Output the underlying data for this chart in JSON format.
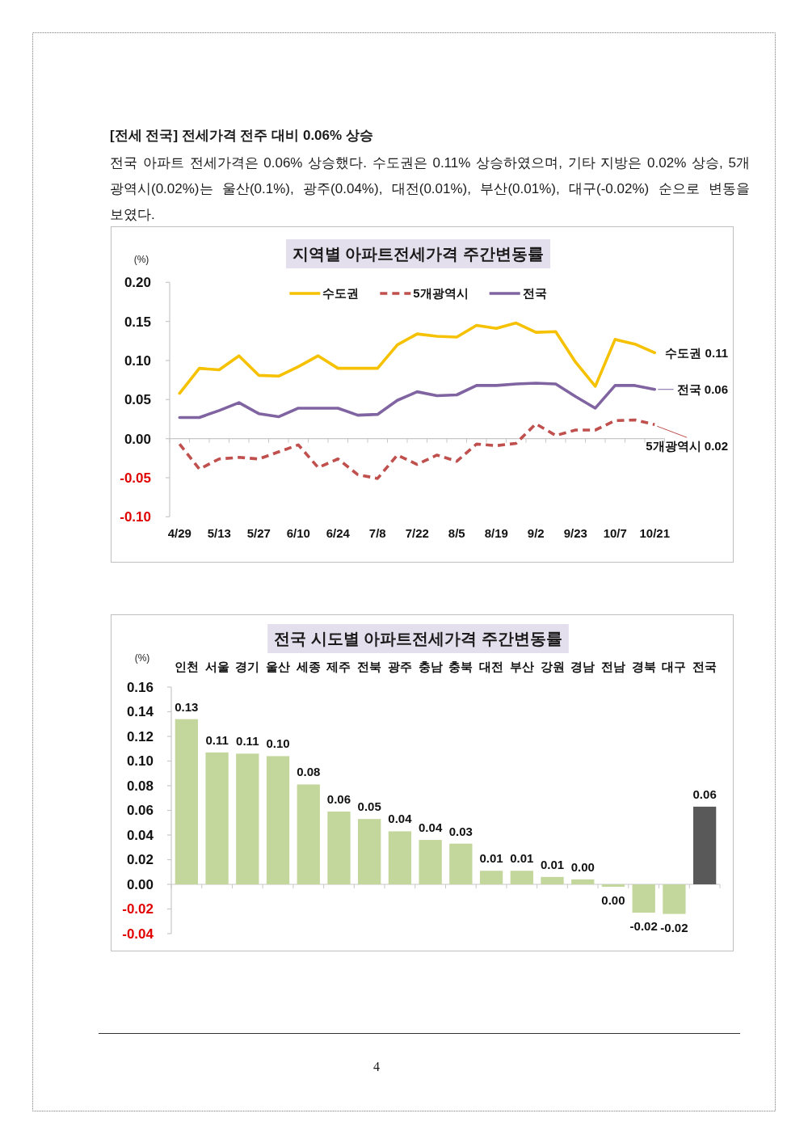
{
  "chart_data": [
    {
      "type": "other",
      "title": "[전세 전국] 전세가격 전주 대비 0.06% 상승",
      "annotations": [
        "전국 아파트 전세가격은 0.06% 상승했다. 수도권은 0.11% 상승하였으며, 기타 지방은 0.02% 상승, 5개 광역시(0.02%)는 울산(0.1%), 광주(0.04%), 대전(0.01%), 부산(0.01%), 대구(-0.02%) 순으로 변동을 보였다.",
        "4"
      ]
    },
    {
      "type": "line",
      "title": "지역별 아파트전세가격 주간변동률",
      "ylabel": "(%)",
      "legend": "top",
      "categories": [
        "4/29",
        null,
        "5/13",
        null,
        "5/27",
        null,
        "6/10",
        null,
        "6/24",
        null,
        "7/8",
        null,
        "7/22",
        null,
        "8/5",
        null,
        "8/19",
        null,
        "9/2",
        null,
        "9/23",
        null,
        "10/7",
        null,
        "10/21"
      ],
      "series": [
        {
          "name": "수도권",
          "color": "#f5c100",
          "line_style": "solid",
          "values": [
            0.058,
            0.09,
            0.088,
            0.106,
            0.081,
            0.08,
            0.092,
            0.106,
            0.09,
            0.09,
            0.09,
            0.12,
            0.134,
            0.131,
            0.13,
            0.145,
            0.141,
            0.148,
            0.136,
            0.137,
            0.098,
            0.067,
            0.127,
            0.121,
            0.11
          ]
        },
        {
          "name": "5개광역시",
          "color": "#c0504d",
          "line_style": "dashed",
          "values": [
            -0.007,
            -0.039,
            -0.026,
            -0.024,
            -0.026,
            -0.017,
            -0.008,
            -0.037,
            -0.026,
            -0.046,
            -0.051,
            -0.021,
            -0.033,
            -0.021,
            -0.029,
            -0.007,
            -0.009,
            -0.006,
            0.019,
            0.004,
            0.011,
            0.011,
            0.023,
            0.024,
            0.018
          ]
        },
        {
          "name": "전국",
          "color": "#8064a2",
          "line_style": "solid",
          "values": [
            0.027,
            0.027,
            0.036,
            0.046,
            0.032,
            0.028,
            0.039,
            0.039,
            0.039,
            0.03,
            0.031,
            0.049,
            0.06,
            0.055,
            0.056,
            0.068,
            0.068,
            0.07,
            0.071,
            0.07,
            0.054,
            0.039,
            0.068,
            0.068,
            0.063
          ]
        }
      ],
      "ylim": [
        -0.1,
        0.2
      ],
      "yticks": [
        {
          "value": 0.2,
          "label": "0.20"
        },
        0.15,
        {
          "value": 0.1,
          "label": "0.10"
        },
        0.05,
        {
          "value": 0,
          "label": "0.00"
        },
        -0.05,
        {
          "value": -0.1,
          "label": "-0.10"
        }
      ],
      "annotations": [
        {
          "text": "수도권 0.11",
          "x": "10/21",
          "y": 0.11
        },
        {
          "text": "전국 0.06",
          "x": "10/21",
          "y": 0.063
        },
        {
          "text": "5개광역시 0.02",
          "x": "10/21",
          "y": 0.018
        }
      ]
    },
    {
      "type": "bar",
      "title": "전국 시도별 아파트전세가격 주간변동률",
      "ylabel": "(%)",
      "categories": [
        "인천",
        "서울",
        "경기",
        "울산",
        "세종",
        "제주",
        "전북",
        "광주",
        "충남",
        "충북",
        "대전",
        "부산",
        "강원",
        "경남",
        "전남",
        "경북",
        "대구",
        "전국"
      ],
      "values": [
        0.134,
        0.107,
        0.106,
        0.104,
        0.081,
        0.059,
        0.053,
        0.043,
        0.036,
        0.033,
        0.011,
        0.011,
        0.006,
        0.004,
        -0.002,
        -0.023,
        -0.024,
        0.063
      ],
      "colors": [
        "#c3d69b",
        "#c3d69b",
        "#c3d69b",
        "#c3d69b",
        "#c3d69b",
        "#c3d69b",
        "#c3d69b",
        "#c3d69b",
        "#c3d69b",
        "#c3d69b",
        "#c3d69b",
        "#c3d69b",
        "#c3d69b",
        "#c3d69b",
        "#c3d69b",
        "#c3d69b",
        "#c3d69b",
        "#595959"
      ],
      "value_labels": [
        "0.13",
        "0.11",
        "0.11",
        "0.10",
        "0.08",
        "0.06",
        "0.05",
        "0.04",
        "0.04",
        "0.03",
        "0.01",
        "0.01",
        "0.01",
        "0.00",
        "0.00",
        "-0.02",
        "-0.02",
        "0.06"
      ],
      "ylim": [
        -0.04,
        0.16
      ],
      "yticks": [
        0.16,
        0.14,
        0.12,
        {
          "value": 0.1,
          "label": "0.10"
        },
        0.08,
        0.06,
        0.04,
        0.02,
        {
          "value": 0,
          "label": "0.00"
        },
        -0.02,
        -0.04
      ]
    }
  ]
}
